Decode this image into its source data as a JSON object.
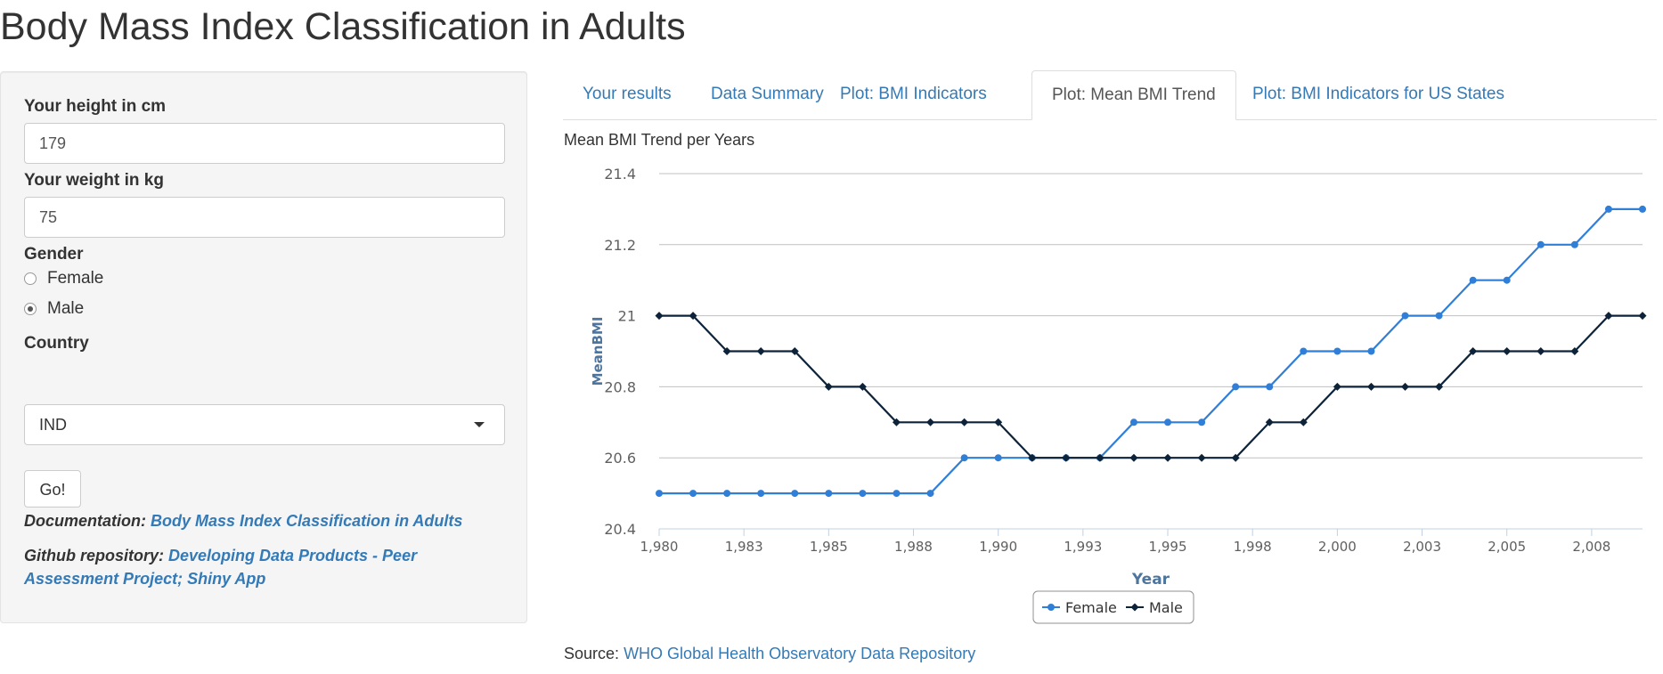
{
  "page": {
    "title": "Body Mass Index Classification in Adults"
  },
  "sidebar": {
    "height_label": "Your height in cm",
    "height_value": "179",
    "weight_label": "Your weight in kg",
    "weight_value": "75",
    "gender_label": "Gender",
    "gender_options": [
      "Female",
      "Male"
    ],
    "gender_selected": "Male",
    "country_label": "Country",
    "country_value": "IND",
    "go_label": "Go!",
    "doc_label": "Documentation:",
    "doc_link": "Body Mass Index Classification in Adults",
    "github_label": "Github repository:",
    "github_link": "Developing Data Products - Peer Assessment Project; Shiny App"
  },
  "tabs": [
    {
      "label": "Your results",
      "active": false
    },
    {
      "label": "Data Summary",
      "active": false
    },
    {
      "label": "Plot: BMI Indicators",
      "active": false
    },
    {
      "label": "Plot: Mean BMI Trend",
      "active": true
    },
    {
      "label": "Plot: BMI Indicators for US States",
      "active": false
    }
  ],
  "chart_heading": "Mean BMI Trend per Years",
  "source": {
    "label": "Source:",
    "link": "WHO Global Health Observatory Data Repository"
  },
  "colors": {
    "female": "#2f7ed8",
    "male": "#0d233a",
    "link": "#337ab7",
    "axis_title": "#4d759e"
  },
  "chart_data": {
    "type": "line",
    "title": "Mean BMI Trend per Years",
    "xlabel": "Year",
    "ylabel": "MeanBMI",
    "ylim": [
      20.4,
      21.4
    ],
    "yticks": [
      20.4,
      20.6,
      20.8,
      21.0,
      21.2,
      21.4
    ],
    "ytick_labels": [
      "20.4",
      "20.6",
      "20.8",
      "21",
      "21.2",
      "21.4"
    ],
    "xlim": [
      1980,
      2009
    ],
    "xticks": [
      1980,
      1982.5,
      1985,
      1987.5,
      1990,
      1992.5,
      1995,
      1997.5,
      2000,
      2002.5,
      2005,
      2007.5
    ],
    "xtick_labels": [
      "1,980",
      "1,983",
      "1,985",
      "1,988",
      "1,990",
      "1,993",
      "1,995",
      "1,998",
      "2,000",
      "2,003",
      "2,005",
      "2,008"
    ],
    "grid": true,
    "legend": "bottom-center",
    "x": [
      1980,
      1981,
      1982,
      1983,
      1984,
      1985,
      1986,
      1987,
      1988,
      1989,
      1990,
      1991,
      1992,
      1993,
      1994,
      1995,
      1996,
      1997,
      1998,
      1999,
      2000,
      2001,
      2002,
      2003,
      2004,
      2005,
      2006,
      2007,
      2008,
      2009
    ],
    "series": [
      {
        "name": "Female",
        "values": [
          20.5,
          20.5,
          20.5,
          20.5,
          20.5,
          20.5,
          20.5,
          20.5,
          20.5,
          20.6,
          20.6,
          20.6,
          20.6,
          20.6,
          20.7,
          20.7,
          20.7,
          20.8,
          20.8,
          20.9,
          20.9,
          20.9,
          21.0,
          21.0,
          21.1,
          21.1,
          21.2,
          21.2,
          21.3,
          21.3
        ]
      },
      {
        "name": "Male",
        "values": [
          21.0,
          21.0,
          20.9,
          20.9,
          20.9,
          20.8,
          20.8,
          20.7,
          20.7,
          20.7,
          20.7,
          20.6,
          20.6,
          20.6,
          20.6,
          20.6,
          20.6,
          20.6,
          20.7,
          20.7,
          20.8,
          20.8,
          20.8,
          20.8,
          20.9,
          20.9,
          20.9,
          20.9,
          21.0,
          21.0
        ]
      }
    ]
  }
}
